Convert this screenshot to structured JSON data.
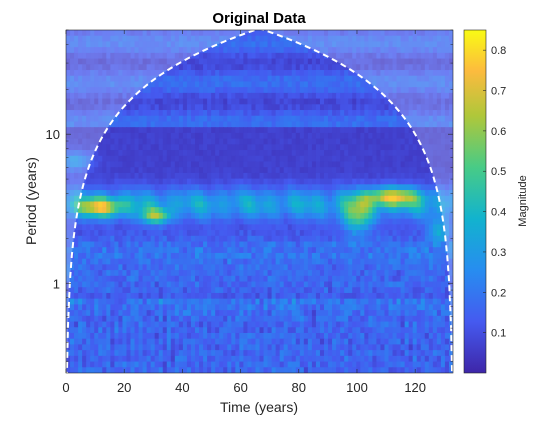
{
  "chart_data": {
    "type": "heatmap",
    "subtype": "wavelet scalogram",
    "title": "Original Data",
    "xlabel": "Time (years)",
    "ylabel": "Period (years)",
    "xlim": [
      0,
      133
    ],
    "ylim": [
      0.25,
      50
    ],
    "yscale": "log",
    "x_ticks": [
      0,
      20,
      40,
      60,
      80,
      100,
      120
    ],
    "y_ticks": [
      {
        "value": 1,
        "label": "1"
      },
      {
        "value": 10,
        "label": "10"
      }
    ],
    "grid": false,
    "colormap": "parula",
    "colorbar": {
      "label": "Magnitude",
      "range": [
        0.0,
        0.85
      ],
      "ticks": [
        0.1,
        0.2,
        0.3,
        0.4,
        0.5,
        0.6,
        0.7,
        0.8
      ]
    },
    "cone_of_influence": {
      "style": "white dashed",
      "apex_x": 65,
      "apex_period": 50
    },
    "features": [
      {
        "name": "dominant band",
        "period_range": [
          2.5,
          5
        ],
        "magnitude": 0.5
      },
      {
        "name": "peak left",
        "x_range": [
          5,
          35
        ],
        "period": 3.2,
        "magnitude": 0.75
      },
      {
        "name": "peak right",
        "x_range": [
          95,
          130
        ],
        "period": 3.6,
        "magnitude": 0.8
      },
      {
        "name": "high-frequency noise",
        "period_range": [
          0.25,
          1.2
        ],
        "magnitude": 0.15
      }
    ]
  }
}
